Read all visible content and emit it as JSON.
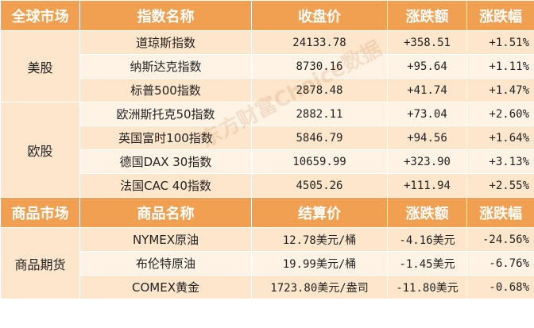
{
  "section1": {
    "headers": [
      "全球市场",
      "指数名称",
      "收盘价",
      "涨跌额",
      "涨跌幅"
    ],
    "groups": [
      {
        "market": "美股",
        "rows": [
          {
            "name": "道琼斯指数",
            "price": "24133.78",
            "change": "+358.51",
            "pct": "+1.51%"
          },
          {
            "name": "纳斯达克指数",
            "price": "8730.16",
            "change": "+95.64",
            "pct": "+1.11%"
          },
          {
            "name": "标普500指数",
            "price": "2878.48",
            "change": "+41.74",
            "pct": "+1.47%"
          }
        ]
      },
      {
        "market": "欧股",
        "rows": [
          {
            "name": "欧洲斯托克50指数",
            "price": "2882.11",
            "change": "+73.04",
            "pct": "+2.60%"
          },
          {
            "name": "英国富时100指数",
            "price": "5846.79",
            "change": "+94.56",
            "pct": "+1.64%"
          },
          {
            "name": "德国DAX 30指数",
            "price": "10659.99",
            "change": "+323.90",
            "pct": "+3.13%"
          },
          {
            "name": "法国CAC 40指数",
            "price": "4505.26",
            "change": "+111.94",
            "pct": "+2.55%"
          }
        ]
      }
    ]
  },
  "section2": {
    "headers": [
      "商品市场",
      "商品名称",
      "结算价",
      "涨跌额",
      "涨跌幅"
    ],
    "groups": [
      {
        "market": "商品期货",
        "rows": [
          {
            "name": "NYMEX原油",
            "price": "12.78美元/桶",
            "change": "-4.16美元",
            "pct": "-24.56%"
          },
          {
            "name": "布伦特原油",
            "price": "19.99美元/桶",
            "change": "-1.45美元",
            "pct": "-6.76%"
          },
          {
            "name": "COMEX黄金",
            "price": "1723.80美元/盎司",
            "change": "-11.80美元",
            "pct": "-0.68%"
          }
        ]
      }
    ]
  },
  "watermark": "东方财富Choice数据",
  "colors": {
    "header": "#f0a050",
    "row_a": "#fde6cc",
    "row_b": "#fff3e6",
    "text": "#222222"
  }
}
